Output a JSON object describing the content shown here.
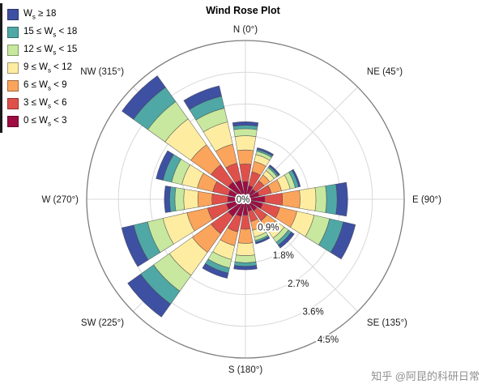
{
  "title": "Wind Rose Plot",
  "watermark": "知乎 @阿昆的科研日常",
  "legend": {
    "position": "top-left",
    "items": [
      {
        "label": "W_s ≥ 18",
        "color": "#3E50A2"
      },
      {
        "label": "15 ≤ W_s < 18",
        "color": "#4FA8A5"
      },
      {
        "label": "12 ≤ W_s < 15",
        "color": "#C7E89E"
      },
      {
        "label": "9 ≤ W_s < 12",
        "color": "#FEEDA1"
      },
      {
        "label": "6 ≤ W_s < 9",
        "color": "#FBA45C"
      },
      {
        "label": "3 ≤ W_s < 6",
        "color": "#E0504A"
      },
      {
        "label": "0 ≤ W_s < 3",
        "color": "#9E0D42"
      }
    ]
  },
  "chart_data": {
    "type": "bar",
    "subtype": "wind-rose (polar stacked bars, 16 sectors)",
    "title": "Wind Rose Plot",
    "grid": true,
    "legend_position": "top-left",
    "angle_axis": {
      "labels": [
        "N (0°)",
        "NE (45°)",
        "E (90°)",
        "SE (135°)",
        "S (180°)",
        "SW (225°)",
        "W (270°)",
        "NW (315°)"
      ],
      "degrees": [
        0,
        45,
        90,
        135,
        180,
        225,
        270,
        315
      ]
    },
    "radial_axis": {
      "unit": "%",
      "tick_labels": [
        "0%",
        "0.9%",
        "1.8%",
        "2.7%",
        "3.6%",
        "4.5%"
      ],
      "tick_values": [
        0,
        0.9,
        1.8,
        2.7,
        3.6,
        4.5
      ],
      "max": 4.5
    },
    "directions": [
      "N",
      "NNE",
      "NE",
      "ENE",
      "E",
      "ESE",
      "SE",
      "SSE",
      "S",
      "SSW",
      "SW",
      "WSW",
      "W",
      "WNW",
      "NW",
      "NNW"
    ],
    "sector_degrees": [
      0,
      22.5,
      45,
      67.5,
      90,
      112.5,
      135,
      157.5,
      180,
      202.5,
      225,
      247.5,
      270,
      292.5,
      315,
      337.5
    ],
    "stack_order": "inner-to-outer",
    "series": [
      {
        "name": "0 ≤ W_s < 3",
        "color": "#9E0D42",
        "values": [
          0.5,
          0.4,
          0.35,
          0.4,
          0.55,
          0.5,
          0.4,
          0.35,
          0.45,
          0.5,
          0.6,
          0.55,
          0.5,
          0.5,
          0.6,
          0.55
        ]
      },
      {
        "name": "3 ≤ W_s < 6",
        "color": "#E0504A",
        "values": [
          0.5,
          0.4,
          0.3,
          0.35,
          0.5,
          0.5,
          0.35,
          0.3,
          0.4,
          0.45,
          0.6,
          0.55,
          0.45,
          0.45,
          0.6,
          0.5
        ]
      },
      {
        "name": "6 ≤ W_s < 9",
        "color": "#FBA45C",
        "values": [
          0.4,
          0.3,
          0.2,
          0.3,
          0.5,
          0.5,
          0.3,
          0.25,
          0.4,
          0.4,
          0.65,
          0.6,
          0.4,
          0.45,
          0.7,
          0.55
        ]
      },
      {
        "name": "9 ≤ W_s < 12",
        "color": "#FEEDA1",
        "values": [
          0.4,
          0.2,
          0.15,
          0.25,
          0.45,
          0.5,
          0.3,
          0.2,
          0.35,
          0.4,
          0.8,
          0.7,
          0.4,
          0.45,
          0.9,
          0.65
        ]
      },
      {
        "name": "12 ≤ W_s < 15",
        "color": "#C7E89E",
        "values": [
          0.2,
          0.1,
          0.1,
          0.15,
          0.3,
          0.45,
          0.15,
          0.1,
          0.2,
          0.25,
          0.55,
          0.45,
          0.25,
          0.3,
          0.6,
          0.4
        ]
      },
      {
        "name": "15 ≤ W_s < 18",
        "color": "#4FA8A5",
        "values": [
          0.1,
          0.05,
          0.05,
          0.1,
          0.3,
          0.4,
          0.1,
          0.05,
          0.1,
          0.15,
          0.45,
          0.4,
          0.15,
          0.25,
          0.5,
          0.35
        ]
      },
      {
        "name": "W_s ≥ 18",
        "color": "#3E50A2",
        "values": [
          0.1,
          0.05,
          0.05,
          0.05,
          0.3,
          0.35,
          0.1,
          0.05,
          0.1,
          0.15,
          0.45,
          0.35,
          0.15,
          0.2,
          0.4,
          0.3
        ]
      }
    ]
  }
}
